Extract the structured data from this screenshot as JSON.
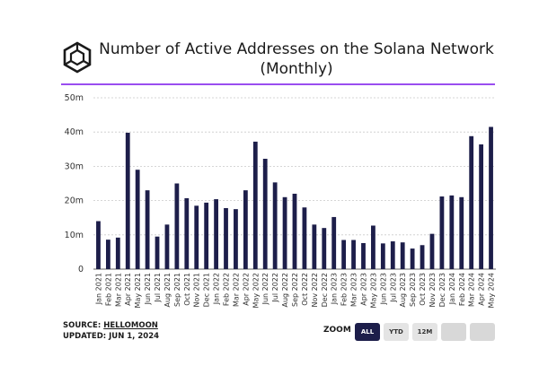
{
  "title_line1": "Number of Active Addresses on the Solana Network",
  "title_line2": "(Monthly)",
  "footer": {
    "source_label": "SOURCE: ",
    "source_name": "HELLOMOON",
    "updated": "UPDATED: JUN 1, 2024"
  },
  "zoom": {
    "label": "ZOOM",
    "buttons": [
      "ALL",
      "YTD",
      "12M",
      "",
      ""
    ],
    "active": "ALL"
  },
  "colors": {
    "bar": "#1d1e4a",
    "accent": "#9a4df0",
    "grid": "#c9c9c9"
  },
  "icon": "hexagon-cube-logo-icon",
  "chart_data": {
    "type": "bar",
    "title": "Number of Active Addresses on the Solana Network (Monthly)",
    "ylim": [
      0,
      50
    ],
    "yunit": "m",
    "yticks": [
      "0",
      "10m",
      "20m",
      "30m",
      "40m",
      "50m"
    ],
    "grid": true,
    "categories": [
      "Jan 2021",
      "Feb 2021",
      "Mar 2021",
      "Apr 2021",
      "May 2021",
      "Jun 2021",
      "Jul 2021",
      "Aug 2021",
      "Sep 2021",
      "Oct 2021",
      "Nov 2021",
      "Dec 2021",
      "Jan 2022",
      "Feb 2022",
      "Mar 2022",
      "Apr 2022",
      "May 2022",
      "Jun 2022",
      "Jul 2022",
      "Aug 2022",
      "Sep 2022",
      "Oct 2022",
      "Nov 2022",
      "Dec 2022",
      "Jan 2023",
      "Feb 2023",
      "Mar 2023",
      "Apr 2023",
      "May 2023",
      "Jun 2023",
      "Jul 2023",
      "Aug 2023",
      "Sep 2023",
      "Oct 2023",
      "Nov 2023",
      "Dec 2023",
      "Jan 2024",
      "Feb 2024",
      "Mar 2024",
      "Apr 2024",
      "May 2024"
    ],
    "values": [
      14.0,
      8.6,
      9.2,
      39.8,
      29.0,
      23.0,
      9.5,
      13.0,
      25.0,
      20.7,
      18.5,
      19.4,
      20.4,
      17.8,
      17.5,
      23.0,
      37.2,
      32.2,
      25.3,
      21.0,
      22.0,
      18.0,
      13.0,
      12.0,
      15.2,
      8.5,
      8.5,
      7.6,
      12.7,
      7.5,
      8.1,
      7.8,
      6.0,
      7.0,
      10.3,
      21.2,
      21.5,
      21.0,
      38.8,
      36.4,
      41.5
    ]
  }
}
